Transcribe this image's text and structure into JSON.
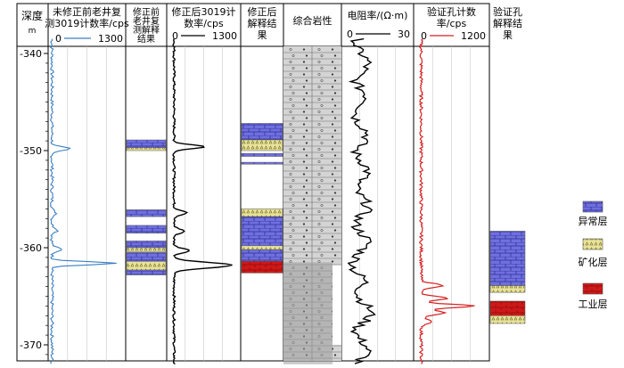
{
  "depth_track": {
    "title": "深度",
    "unit": "m",
    "depth_range": [
      338.5,
      372
    ],
    "ticks": [
      -340,
      -350,
      -360,
      -370
    ]
  },
  "columns": [
    {
      "id": "c1",
      "title_lines": [
        "未修正前老井复",
        "测3019计数率/cps"
      ],
      "scale": [
        "0",
        "1300"
      ],
      "curve_color": "#3a7fc2"
    },
    {
      "id": "c2",
      "title_lines": [
        "修正前",
        "老井复",
        "测解释",
        "结果"
      ]
    },
    {
      "id": "c3",
      "title_lines": [
        "修正后3019计",
        "数率/cps"
      ],
      "scale": [
        "0",
        "1300"
      ],
      "curve_color": "#000000"
    },
    {
      "id": "c4",
      "title_lines": [
        "修正后",
        "解释结",
        "果"
      ]
    },
    {
      "id": "c5",
      "title_lines": [
        "综合岩性"
      ]
    },
    {
      "id": "c6",
      "title_lines": [
        "电阻率/(Ω·m)"
      ],
      "scale": [
        "0",
        "30"
      ],
      "curve_color": "#000000"
    },
    {
      "id": "c7",
      "title_lines": [
        "验证孔计数",
        "率/cps"
      ],
      "scale": [
        "0",
        "1200"
      ],
      "curve_color": "#d62020"
    },
    {
      "id": "c8",
      "title_lines": [
        "验证孔",
        "解释结",
        "果"
      ]
    }
  ],
  "legend": [
    {
      "key": "anomaly",
      "label": "异常层",
      "fill": "#6f6fe0"
    },
    {
      "key": "mineral",
      "label": "矿化层",
      "fill": "#e8e29a"
    },
    {
      "key": "industrial",
      "label": "工业层",
      "fill": "#d01818"
    }
  ]
}
